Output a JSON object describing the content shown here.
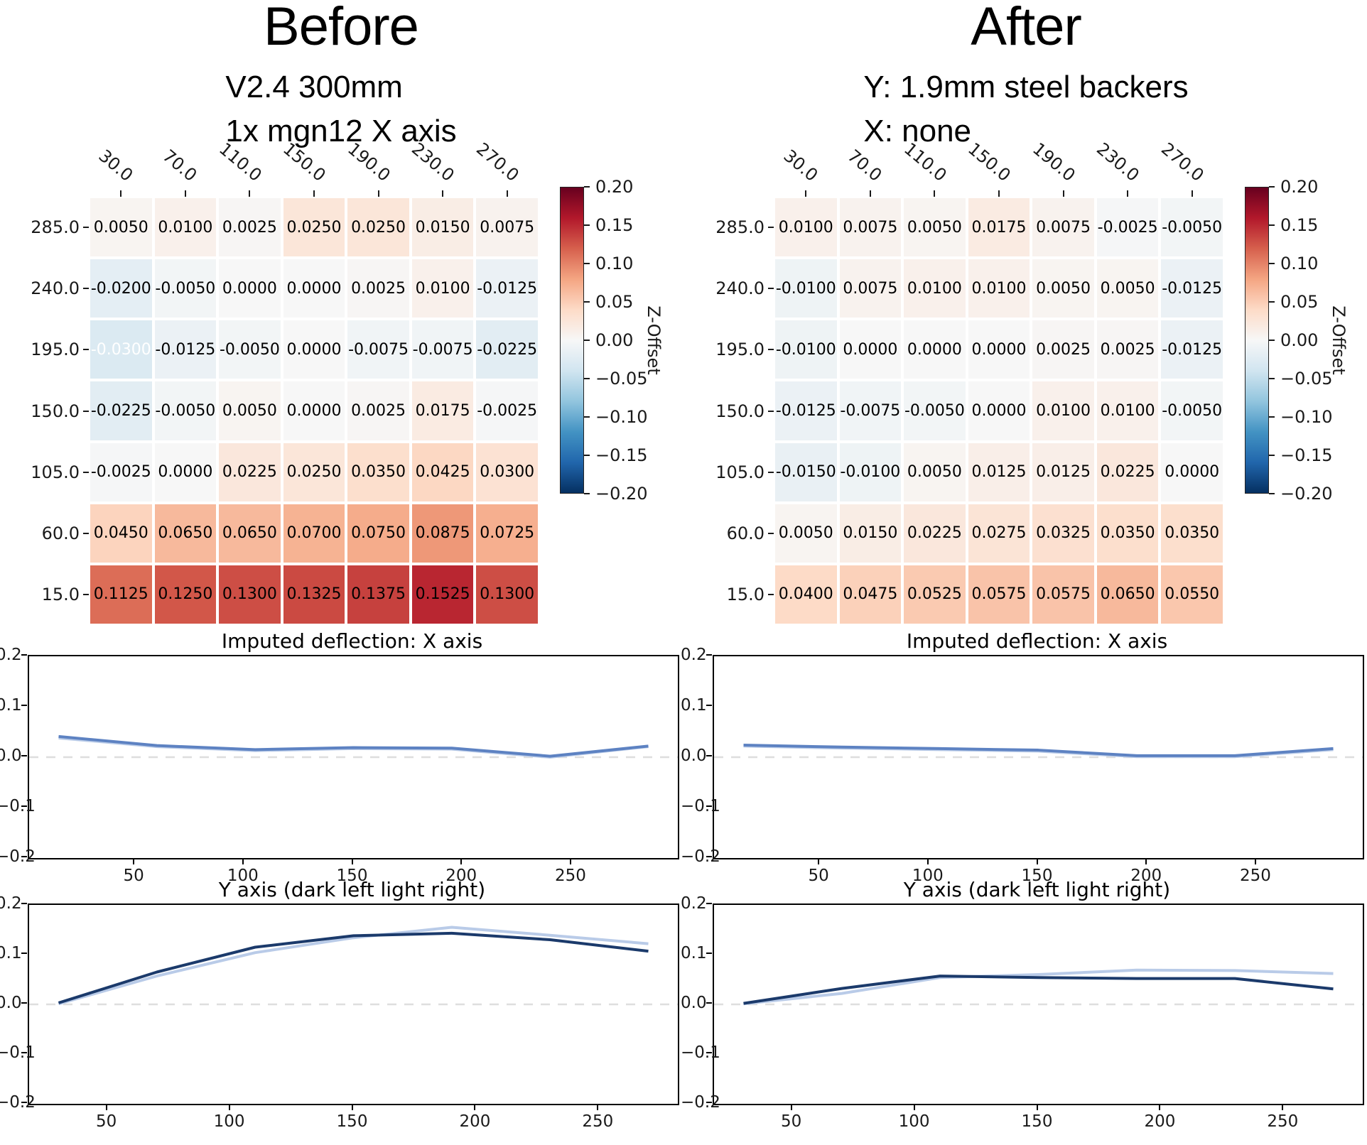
{
  "colors": {
    "line_main": "#5d82c2",
    "line_light": "#b9cbe8",
    "line_dark": "#1b3a6b",
    "zero_dash": "#dedede",
    "cmap_name": "RdBu_r",
    "cmap_stops": [
      [
        -1.0,
        "#053061"
      ],
      [
        -0.8,
        "#2166ac"
      ],
      [
        -0.6,
        "#4393c3"
      ],
      [
        -0.4,
        "#92c5de"
      ],
      [
        -0.2,
        "#d1e5f0"
      ],
      [
        0.0,
        "#f7f7f7"
      ],
      [
        0.2,
        "#fddbc7"
      ],
      [
        0.4,
        "#f4a582"
      ],
      [
        0.6,
        "#d6604d"
      ],
      [
        0.8,
        "#b2182b"
      ],
      [
        1.0,
        "#67001f"
      ]
    ]
  },
  "chart_data": [
    {
      "id": "before-heatmap",
      "type": "heatmap",
      "title": "Before",
      "subtitle_lines": [
        "V2.4 300mm",
        "1x mgn12 X axis"
      ],
      "x_labels": [
        "30.0",
        "70.0",
        "110.0",
        "150.0",
        "190.0",
        "230.0",
        "270.0"
      ],
      "y_labels": [
        "285.0",
        "240.0",
        "195.0",
        "150.0",
        "105.0",
        "60.0",
        "15.0"
      ],
      "vmin": -0.2,
      "vmax": 0.2,
      "white_text_cells": [
        [
          2,
          0
        ]
      ],
      "values": [
        [
          0.005,
          0.01,
          0.0025,
          0.025,
          0.025,
          0.015,
          0.0075
        ],
        [
          -0.02,
          -0.005,
          0.0,
          0.0,
          0.0025,
          0.01,
          -0.0125
        ],
        [
          -0.03,
          -0.0125,
          -0.005,
          0.0,
          -0.0075,
          -0.0075,
          -0.0225
        ],
        [
          -0.0225,
          -0.005,
          0.005,
          0.0,
          0.0025,
          0.0175,
          -0.0025
        ],
        [
          -0.0025,
          0.0,
          0.0225,
          0.025,
          0.035,
          0.0425,
          0.03
        ],
        [
          0.045,
          0.065,
          0.065,
          0.07,
          0.075,
          0.0875,
          0.0725
        ],
        [
          0.1125,
          0.125,
          0.13,
          0.1325,
          0.1375,
          0.1525,
          0.13
        ]
      ],
      "colorbar": {
        "label": "Z-Offset",
        "ticks": [
          0.2,
          0.15,
          0.1,
          0.05,
          0.0,
          -0.05,
          -0.1,
          -0.15,
          -0.2
        ]
      }
    },
    {
      "id": "after-heatmap",
      "type": "heatmap",
      "title": "After",
      "subtitle_lines": [
        "Y: 1.9mm steel backers",
        "X: none"
      ],
      "x_labels": [
        "30.0",
        "70.0",
        "110.0",
        "150.0",
        "190.0",
        "230.0",
        "270.0"
      ],
      "y_labels": [
        "285.0",
        "240.0",
        "195.0",
        "150.0",
        "105.0",
        "60.0",
        "15.0"
      ],
      "vmin": -0.2,
      "vmax": 0.2,
      "white_text_cells": [],
      "values": [
        [
          0.01,
          0.0075,
          0.005,
          0.0175,
          0.0075,
          -0.0025,
          -0.005
        ],
        [
          -0.01,
          0.0075,
          0.01,
          0.01,
          0.005,
          0.005,
          -0.0125
        ],
        [
          -0.01,
          0.0,
          0.0,
          0.0,
          0.0025,
          0.0025,
          -0.0125
        ],
        [
          -0.0125,
          -0.0075,
          -0.005,
          0.0,
          0.01,
          0.01,
          -0.005
        ],
        [
          -0.015,
          -0.01,
          0.005,
          0.0125,
          0.0125,
          0.0225,
          0.0
        ],
        [
          0.005,
          0.015,
          0.0225,
          0.0275,
          0.0325,
          0.035,
          0.035
        ],
        [
          0.04,
          0.0475,
          0.0525,
          0.0575,
          0.0575,
          0.065,
          0.055
        ]
      ],
      "colorbar": {
        "label": "Z-Offset",
        "ticks": [
          0.2,
          0.15,
          0.1,
          0.05,
          0.0,
          -0.05,
          -0.1,
          -0.15,
          -0.2
        ]
      }
    },
    {
      "id": "before-x",
      "type": "line",
      "title": "Imputed deflection: X axis",
      "x": [
        15,
        60,
        105,
        150,
        195,
        240,
        285
      ],
      "xlim": [
        1.5,
        298.5
      ],
      "ylim": [
        -0.2,
        0.2
      ],
      "x_ticks": [
        50,
        100,
        150,
        200,
        250
      ],
      "y_ticks": [
        0.2,
        0.1,
        0.0,
        -0.1,
        -0.2
      ],
      "zero_line": true,
      "series": [
        {
          "name": "light",
          "color_key": "line_light",
          "values": [
            0.038,
            0.021,
            0.013,
            0.017,
            0.016,
            0.0,
            0.021
          ]
        },
        {
          "name": "main",
          "color_key": "line_main",
          "values": [
            0.041,
            0.023,
            0.015,
            0.019,
            0.018,
            0.002,
            0.022
          ]
        }
      ]
    },
    {
      "id": "before-y",
      "type": "line",
      "title": "Y axis (dark left light right)",
      "x": [
        30,
        70,
        110,
        150,
        190,
        230,
        270
      ],
      "xlim": [
        18,
        282
      ],
      "ylim": [
        -0.2,
        0.2
      ],
      "x_ticks": [
        50,
        100,
        150,
        200,
        250
      ],
      "y_ticks": [
        0.2,
        0.1,
        0.0,
        -0.1,
        -0.2
      ],
      "zero_line": true,
      "series": [
        {
          "name": "light-right",
          "color_key": "line_light",
          "values": [
            0.001,
            0.057,
            0.104,
            0.134,
            0.155,
            0.139,
            0.122
          ]
        },
        {
          "name": "dark-left",
          "color_key": "line_dark",
          "values": [
            0.003,
            0.065,
            0.115,
            0.138,
            0.143,
            0.13,
            0.107
          ]
        }
      ]
    },
    {
      "id": "after-x",
      "type": "line",
      "title": "Imputed deflection: X axis",
      "x": [
        15,
        60,
        105,
        150,
        195,
        240,
        285
      ],
      "xlim": [
        1.5,
        298.5
      ],
      "ylim": [
        -0.2,
        0.2
      ],
      "x_ticks": [
        50,
        100,
        150,
        200,
        250
      ],
      "y_ticks": [
        0.2,
        0.1,
        0.0,
        -0.1,
        -0.2
      ],
      "zero_line": true,
      "series": [
        {
          "name": "light",
          "color_key": "line_light",
          "values": [
            0.022,
            0.018,
            0.015,
            0.012,
            0.001,
            0.001,
            0.015
          ]
        },
        {
          "name": "main",
          "color_key": "line_main",
          "values": [
            0.024,
            0.02,
            0.017,
            0.014,
            0.003,
            0.003,
            0.017
          ]
        }
      ]
    },
    {
      "id": "after-y",
      "type": "line",
      "title": "Y axis (dark left light right)",
      "x": [
        30,
        70,
        110,
        150,
        190,
        230,
        270
      ],
      "xlim": [
        18,
        282
      ],
      "ylim": [
        -0.2,
        0.2
      ],
      "x_ticks": [
        50,
        100,
        150,
        200,
        250
      ],
      "y_ticks": [
        0.2,
        0.1,
        0.0,
        -0.1,
        -0.2
      ],
      "zero_line": true,
      "series": [
        {
          "name": "light-right",
          "color_key": "line_light",
          "values": [
            0.001,
            0.022,
            0.054,
            0.06,
            0.069,
            0.068,
            0.062
          ]
        },
        {
          "name": "dark-left",
          "color_key": "line_dark",
          "values": [
            0.002,
            0.032,
            0.057,
            0.054,
            0.052,
            0.052,
            0.031
          ]
        }
      ]
    }
  ]
}
